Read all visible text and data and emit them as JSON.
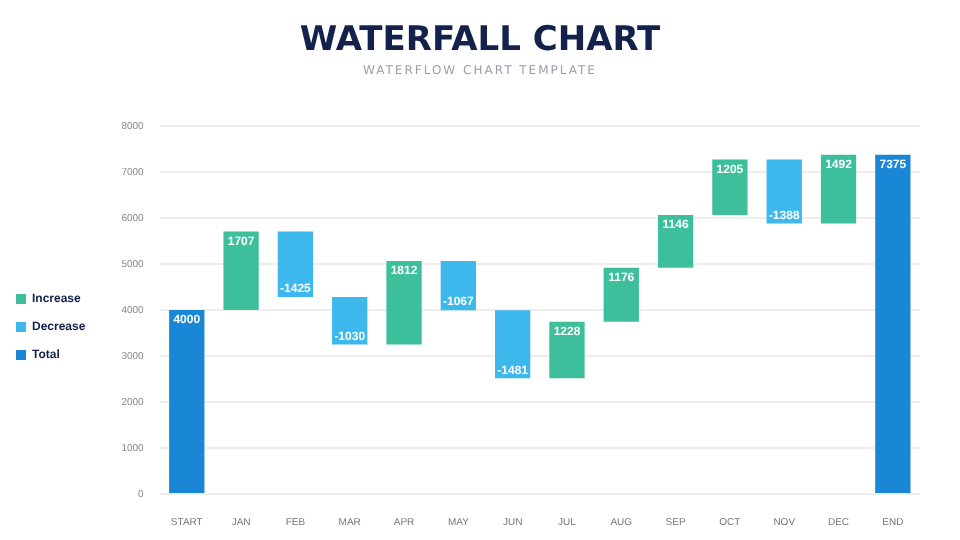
{
  "chart_data": {
    "type": "bar",
    "title": "WATERFALL CHART",
    "subtitle": "WATERFLOW CHART TEMPLATE",
    "categories": [
      "START",
      "JAN",
      "FEB",
      "MAR",
      "APR",
      "MAY",
      "JUN",
      "JUL",
      "AUG",
      "SEP",
      "OCT",
      "NOV",
      "DEC",
      "END"
    ],
    "series": [
      {
        "name": "Increase",
        "color": "#3dbf9c",
        "values": [
          null,
          1707,
          null,
          null,
          1812,
          null,
          null,
          1228,
          1176,
          1146,
          1205,
          null,
          1492,
          null
        ],
        "base": [
          null,
          4000,
          null,
          null,
          3252,
          null,
          null,
          2516,
          3744,
          4920,
          6066,
          null,
          5883,
          null
        ]
      },
      {
        "name": "Decrease",
        "color": "#3db8ec",
        "values": [
          null,
          null,
          -1425,
          -1030,
          null,
          -1067,
          -1481,
          null,
          null,
          null,
          null,
          -1388,
          null,
          null
        ],
        "base": [
          null,
          null,
          5707,
          4282,
          null,
          5064,
          3997,
          null,
          null,
          null,
          null,
          7271,
          null,
          null
        ]
      },
      {
        "name": "Total",
        "color": "#1a86d6",
        "values": [
          4000,
          null,
          null,
          null,
          null,
          null,
          null,
          null,
          null,
          null,
          null,
          null,
          null,
          7375
        ]
      }
    ],
    "ylim": [
      0,
      8000
    ],
    "yticks": [
      0,
      1000,
      2000,
      3000,
      4000,
      5000,
      6000,
      7000,
      8000
    ],
    "grid": "y",
    "legend": "left",
    "data_labels": true
  }
}
